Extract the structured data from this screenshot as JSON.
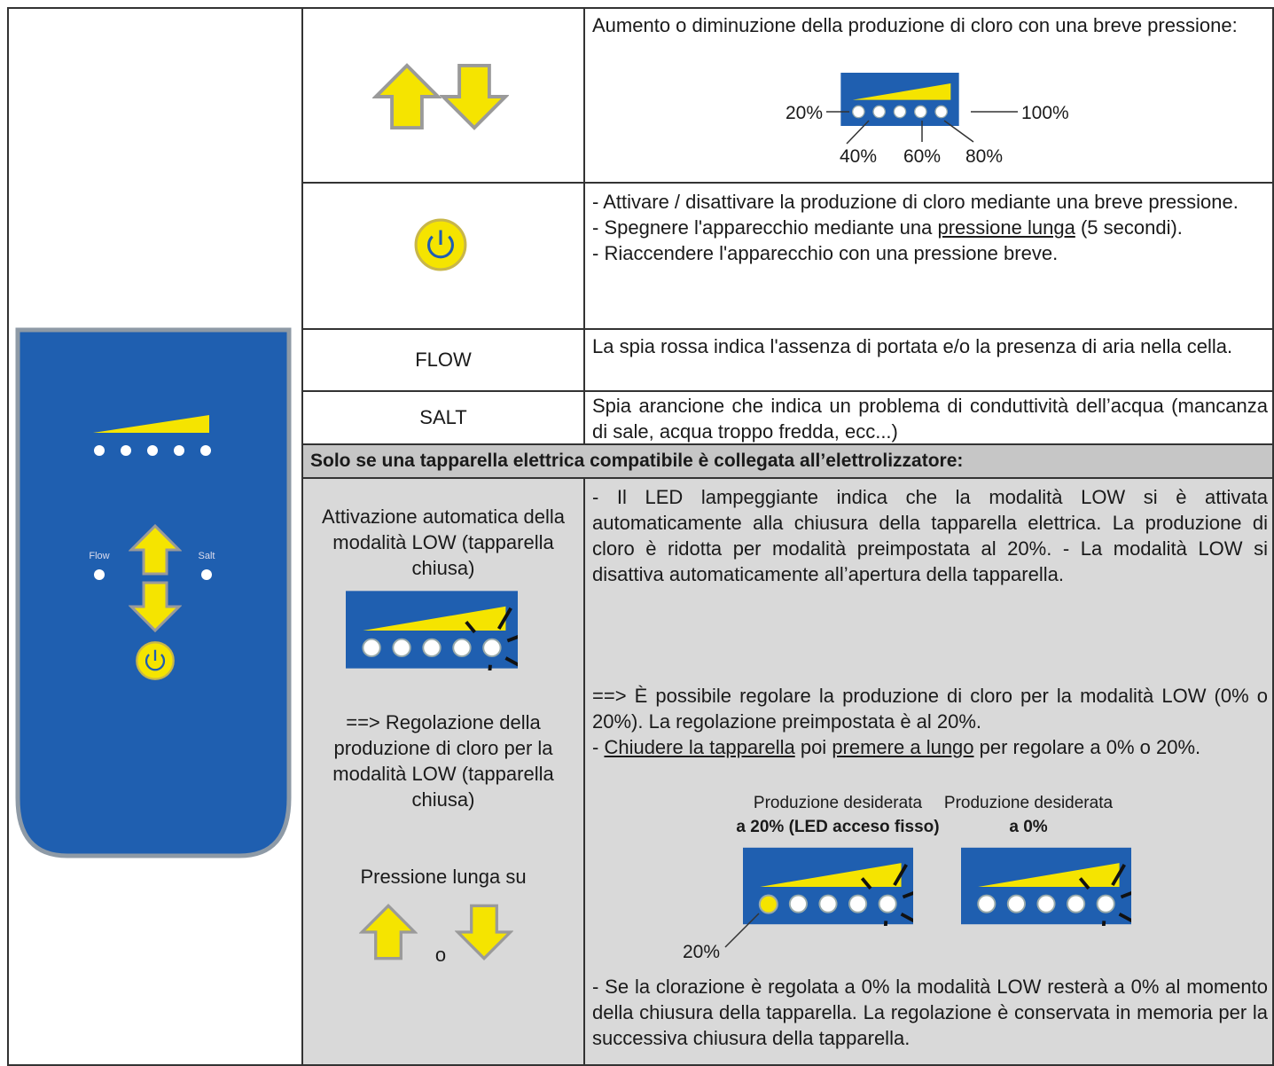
{
  "panel": {
    "flow_label": "Flow",
    "salt_label": "Salt"
  },
  "rows": [
    {
      "description": "Aumento o diminuzione della produzione di cloro con una breve pressione:",
      "levels": [
        "20%",
        "40%",
        "60%",
        "80%",
        "100%"
      ]
    },
    {
      "description": [
        "- Attivare / disattivare la produzione di cloro mediante una breve pressione.",
        "- Spegnere l'apparecchio mediante una",
        "pressione lunga",
        "(5 secondi).",
        "- Riaccendere l'apparecchio con una pressione breve."
      ]
    },
    {
      "key": "FLOW",
      "description": "La spia rossa indica l'assenza di portata e/o la presenza di aria nella cella."
    },
    {
      "key": "SALT",
      "description": "Spia arancione che indica un problema di conduttività dell’acqua (mancanza di sale, acqua troppo fredda, ecc...)"
    }
  ],
  "section": {
    "title": "Solo se una tapparella elettrica compatibile è collegata all’elettrolizzatore:",
    "left": {
      "auto_title": "Attivazione automatica della modalità LOW (tapparella chiusa)",
      "adjust_title": "==> Regolazione della produzione di cloro per la modalità LOW (tapparella chiusa)",
      "press": "Pressione lunga su",
      "or": "o"
    },
    "right": {
      "auto_text": "- Il LED lampeggiante indica che la modalità LOW si è attivata automaticamente alla chiusura della tapparella elettrica. La produzione di cloro è ridotta per modalità preimpostata al 20%. - La modalità LOW si disattiva automaticamente all’apertura della tapparella.",
      "adjust_text": "==> È possibile regolare la produzione di cloro per la modalità LOW (0% o 20%). La regolazione preimpostata è al 20%.",
      "adjust_steps": [
        "- ",
        "Chiudere la tapparella",
        " poi ",
        "premere a lungo",
        " per regolare a 0% o 20%."
      ],
      "option_20": {
        "caption": "Produzione desiderata",
        "caption_bold": "a 20% (LED acceso fisso)",
        "label": "20%"
      },
      "option_0": {
        "caption": "Produzione desiderata",
        "caption_bold": "a 0%"
      },
      "note": "- Se la clorazione è regolata a 0% la modalità LOW resterà a 0% al momento della chiusura della tapparella. La regolazione è conservata in memoria per la successiva chiusura della tapparella."
    }
  }
}
